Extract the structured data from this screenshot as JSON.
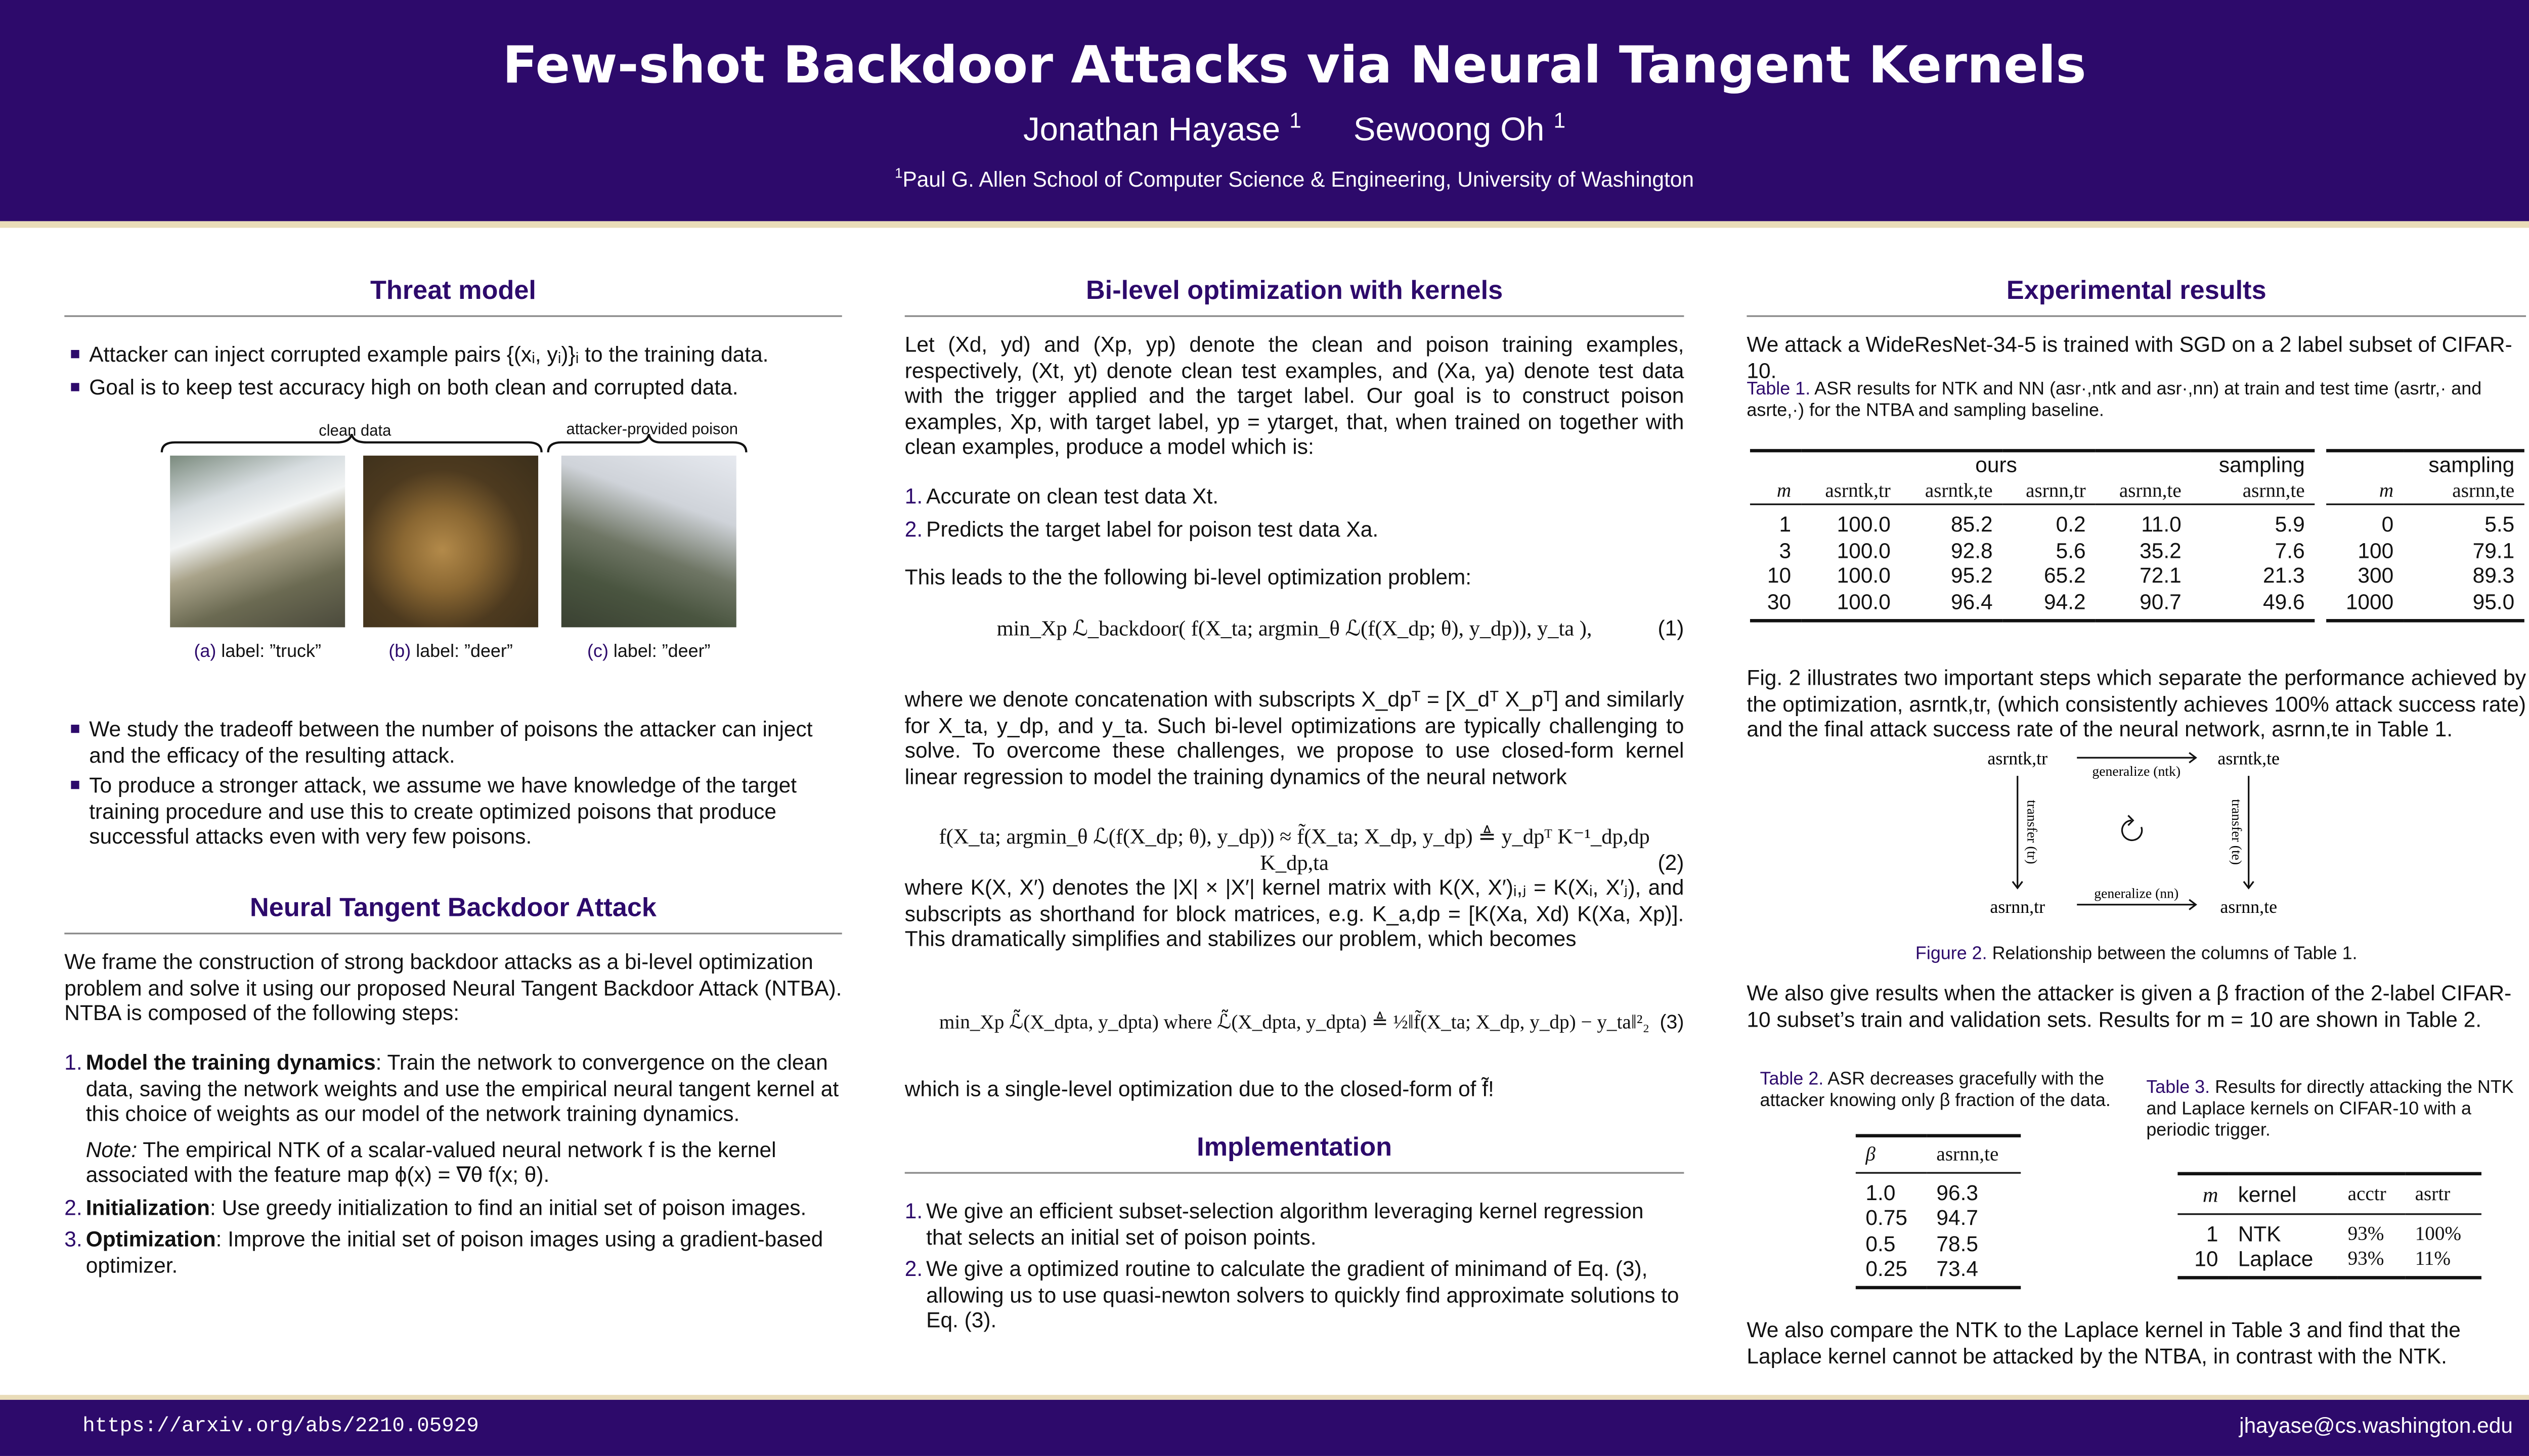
{
  "header": {
    "title": "Few-shot Backdoor Attacks via Neural Tangent Kernels",
    "authors": [
      "Jonathan Hayase",
      "Sewoong Oh"
    ],
    "author_affil_mark": "1",
    "affiliation": "Paul G. Allen School of Computer Science & Engineering, University of Washington"
  },
  "colors": {
    "brand": "#2d0a6b",
    "accent_line": "#e9dcb8"
  },
  "threat": {
    "heading": "Threat model",
    "bullets1": [
      "Attacker can inject corrupted example pairs {(xᵢ, yᵢ)}ᵢ to the training data.",
      "Goal is to keep test accuracy high on both clean and corrupted data."
    ],
    "clean_label": "clean data",
    "poison_label": "attacker-provided poison",
    "captions": [
      {
        "tag": "(a)",
        "text": " label: ”truck”"
      },
      {
        "tag": "(b)",
        "text": " label: ”deer”"
      },
      {
        "tag": "(c)",
        "text": " label: ”deer”"
      }
    ],
    "bullets2": [
      "We study the tradeoff between the number of poisons the attacker can inject and the efficacy of the resulting attack.",
      "To produce a stronger attack, we assume we have knowledge of the target training procedure and use this to create optimized poisons that produce successful attacks even with very few poisons."
    ]
  },
  "ntba": {
    "heading": "Neural Tangent Backdoor Attack",
    "intro": "We frame the construction of strong backdoor attacks as a bi-level optimization problem and solve it using our proposed Neural Tangent Backdoor Attack (NTBA). NTBA is composed of the following steps:",
    "steps": [
      {
        "n": "1.",
        "title": "Model the training dynamics",
        "text": ": Train the network to convergence on the clean data, saving the network weights and use the empirical neural tangent kernel at this choice of weights as our model of the network training dynamics."
      },
      {
        "n": "2.",
        "title": "Initialization",
        "text": ": Use greedy initialization to find an initial set of poison images."
      },
      {
        "n": "3.",
        "title": "Optimization",
        "text": ": Improve the initial set of poison images using a gradient-based optimizer."
      }
    ],
    "note_label": "Note:",
    "note": " The empirical NTK of a scalar-valued neural network f is the kernel associated with the feature map ϕ(x) = ∇θ f(x; θ)."
  },
  "bilevel": {
    "heading": "Bi-level optimization with kernels",
    "p1": "Let (Xd, yd) and (Xp, yp) denote the clean and poison training examples, respectively, (Xt, yt) denote clean test examples, and (Xa, ya) denote test data with the trigger applied and the target label. Our goal is to construct poison examples, Xp, with target label, yp = ytarget, that, when trained on together with clean examples, produce a model which is:",
    "goals": [
      {
        "n": "1.",
        "text": "Accurate on clean test data Xt."
      },
      {
        "n": "2.",
        "text": "Predicts the target label for poison test data Xa."
      }
    ],
    "p2": "This leads to the the following bi-level optimization problem:",
    "eq1": "min_Xp  ℒ_backdoor( f(X_ta; argmin_θ ℒ(f(X_dp; θ), y_dp)), y_ta ),",
    "eq1_num": "(1)",
    "p3": "where we denote concatenation with subscripts X_dpᵀ = [X_dᵀ  X_pᵀ] and similarly for X_ta, y_dp, and y_ta. Such bi-level optimizations are typically challenging to solve. To overcome these challenges, we propose to use closed-form kernel linear regression to model the training dynamics of the neural network",
    "eq2": "f(X_ta; argmin_θ ℒ(f(X_dp; θ), y_dp)) ≈ f̃(X_ta; X_dp, y_dp) ≜ y_dpᵀ K⁻¹_dp,dp K_dp,ta",
    "eq2_num": "(2)",
    "p4": "where K(X, X′) denotes the |X| × |X′| kernel matrix with K(X, X′)ᵢ,ⱼ = K(Xᵢ, X′ⱼ), and subscripts as shorthand for block matrices, e.g. K_a,dp = [K(Xa, Xd)  K(Xa, Xp)]. This dramatically simplifies and stabilizes our problem, which becomes",
    "eq3": "min_Xp ℒ̃(X_dpta, y_dpta)   where   ℒ̃(X_dpta, y_dpta) ≜ ½‖f̃(X_ta; X_dp, y_dp) − y_ta‖²₂",
    "eq3_num": "(3)",
    "p5": "which is a single-level optimization due to the closed-form of f̃!"
  },
  "impl": {
    "heading": "Implementation",
    "items": [
      {
        "n": "1.",
        "text": "We give an efficient subset-selection algorithm leveraging kernel regression that selects an initial set of poison points."
      },
      {
        "n": "2.",
        "text": "We give a optimized routine to calculate the gradient of minimand of Eq. (3), allowing us to use quasi-newton solvers to quickly find approximate solutions to Eq. (3)."
      }
    ]
  },
  "results": {
    "heading": "Experimental results",
    "intro": "We attack a WideResNet-34-5 is trained with SGD on a 2 label subset of CIFAR-10.",
    "t1_label": "Table 1.",
    "t1_caption": " ASR results for NTK and NN (asr·,ntk and asr·,nn) at train and test time (asrtr,· and asrte,·) for the NTBA and sampling baseline.",
    "t1": {
      "group_ours": "ours",
      "group_sampling": "sampling",
      "cols": [
        "m",
        "asrntk,tr",
        "asrntk,te",
        "asrnn,tr",
        "asrnn,te",
        "asrnn,te"
      ],
      "rows": [
        [
          "1",
          "100.0",
          "85.2",
          "0.2",
          "11.0",
          "5.9"
        ],
        [
          "3",
          "100.0",
          "92.8",
          "5.6",
          "35.2",
          "7.6"
        ],
        [
          "10",
          "100.0",
          "95.2",
          "65.2",
          "72.1",
          "21.3"
        ],
        [
          "30",
          "100.0",
          "96.4",
          "94.2",
          "90.7",
          "49.6"
        ]
      ],
      "side_group": "sampling",
      "side_cols": [
        "m",
        "asrnn,te"
      ],
      "side_rows": [
        [
          "0",
          "5.5"
        ],
        [
          "100",
          "79.1"
        ],
        [
          "300",
          "89.3"
        ],
        [
          "1000",
          "95.0"
        ]
      ]
    },
    "p_fig": "Fig. 2 illustrates two important steps which separate the performance achieved by the optimization, asrntk,tr, (which consistently achieves 100% attack success rate) and the final attack success rate of the neural network, asrnn,te in Table 1.",
    "fig2": {
      "tl": "asrntk,tr",
      "tr": "asrntk,te",
      "bl": "asrnn,tr",
      "br": "asrnn,te",
      "top_arrow": "generalize (ntk)",
      "bottom_arrow": "generalize (nn)",
      "left_arrow": "transfer (tr)",
      "right_arrow": "transfer (te)",
      "label": "Figure 2.",
      "caption": " Relationship between the columns of Table 1."
    },
    "p_beta": "We also give results when the attacker is given a β fraction of the 2-label CIFAR-10 subset’s train and validation sets. Results for m = 10 are shown in Table 2.",
    "t2_label": "Table 2.",
    "t2_caption": " ASR decreases gracefully with the attacker knowing only β fraction of the data.",
    "t2": {
      "cols": [
        "β",
        "asrnn,te"
      ],
      "rows": [
        [
          "1.0",
          "96.3"
        ],
        [
          "0.75",
          "94.7"
        ],
        [
          "0.5",
          "78.5"
        ],
        [
          "0.25",
          "73.4"
        ]
      ]
    },
    "t3_label": "Table 3.",
    "t3_caption": " Results for directly attacking the NTK and Laplace kernels on CIFAR-10 with a periodic trigger.",
    "t3": {
      "cols": [
        "m",
        "kernel",
        "acctr",
        "asrtr"
      ],
      "rows": [
        [
          "1",
          "NTK",
          "93%",
          "100%"
        ],
        [
          "10",
          "Laplace",
          "93%",
          "11%"
        ]
      ]
    },
    "p_end": "We also compare the NTK to the Laplace kernel in Table 3 and find that the Laplace kernel cannot be attacked by the NTBA, in contrast with the NTK."
  },
  "footer": {
    "url": "https://arxiv.org/abs/2210.05929",
    "email": "jhayase@cs.washington.edu"
  }
}
